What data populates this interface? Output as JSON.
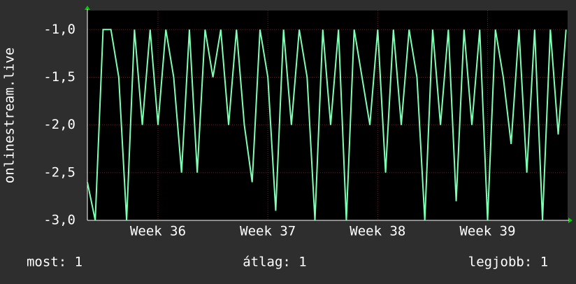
{
  "chart_data": {
    "type": "line",
    "y_label": "onlinestream.live",
    "x": [
      0,
      0.5,
      1,
      1.5,
      2,
      2.5,
      3,
      3.5,
      4,
      4.5,
      5,
      5.5,
      6,
      6.5,
      7,
      7.5,
      8,
      8.5,
      9,
      9.5,
      10,
      10.5,
      11,
      11.5,
      12,
      12.5,
      13,
      13.5,
      14,
      14.5,
      15,
      15.5,
      16,
      16.5,
      17,
      17.5,
      18,
      18.5,
      19,
      19.5,
      20,
      20.5,
      21,
      21.5,
      22,
      22.5,
      23,
      23.5,
      24,
      24.5,
      25,
      25.5,
      26,
      26.5,
      27,
      27.5,
      28,
      28.5,
      29,
      29.5,
      30,
      30.5
    ],
    "series": [
      {
        "name": "onlinestream.live",
        "color": "#7dffb4",
        "values": [
          -2.6,
          -3,
          -1,
          -1,
          -1.5,
          -3,
          -1,
          -2,
          -1,
          -2,
          -1,
          -1.5,
          -2.5,
          -1,
          -2.5,
          -1,
          -1.5,
          -1,
          -2,
          -1,
          -2,
          -2.6,
          -1,
          -1.5,
          -2.9,
          -1,
          -2,
          -1,
          -1.5,
          -3,
          -1,
          -2,
          -1,
          -3,
          -1,
          -1.5,
          -2,
          -1,
          -2.5,
          -1,
          -2,
          -1,
          -1.5,
          -3,
          -1,
          -2,
          -1,
          -2.8,
          -1,
          -2,
          -1,
          -3,
          -1,
          -1.5,
          -2.2,
          -1,
          -2.5,
          -1,
          -3,
          -1,
          -2.1,
          -1
        ]
      }
    ],
    "xlim": [
      0,
      30.6
    ],
    "xticks": [
      {
        "value": 4.5,
        "label": "Week 36"
      },
      {
        "value": 11.5,
        "label": "Week 37"
      },
      {
        "value": 18.5,
        "label": "Week 38"
      },
      {
        "value": 25.5,
        "label": "Week 39"
      }
    ],
    "ylim": [
      -3,
      -0.8
    ],
    "yticks": [
      {
        "value": -3,
        "label": "-3,0"
      },
      {
        "value": -2.5,
        "label": "-2,5"
      },
      {
        "value": -2,
        "label": "-2,0"
      },
      {
        "value": -1.5,
        "label": "-1,5"
      },
      {
        "value": -1,
        "label": "-1,0"
      }
    ],
    "grid": true,
    "footer": [
      "most: 1",
      "átlag: 1",
      "legjobb: 1"
    ]
  }
}
